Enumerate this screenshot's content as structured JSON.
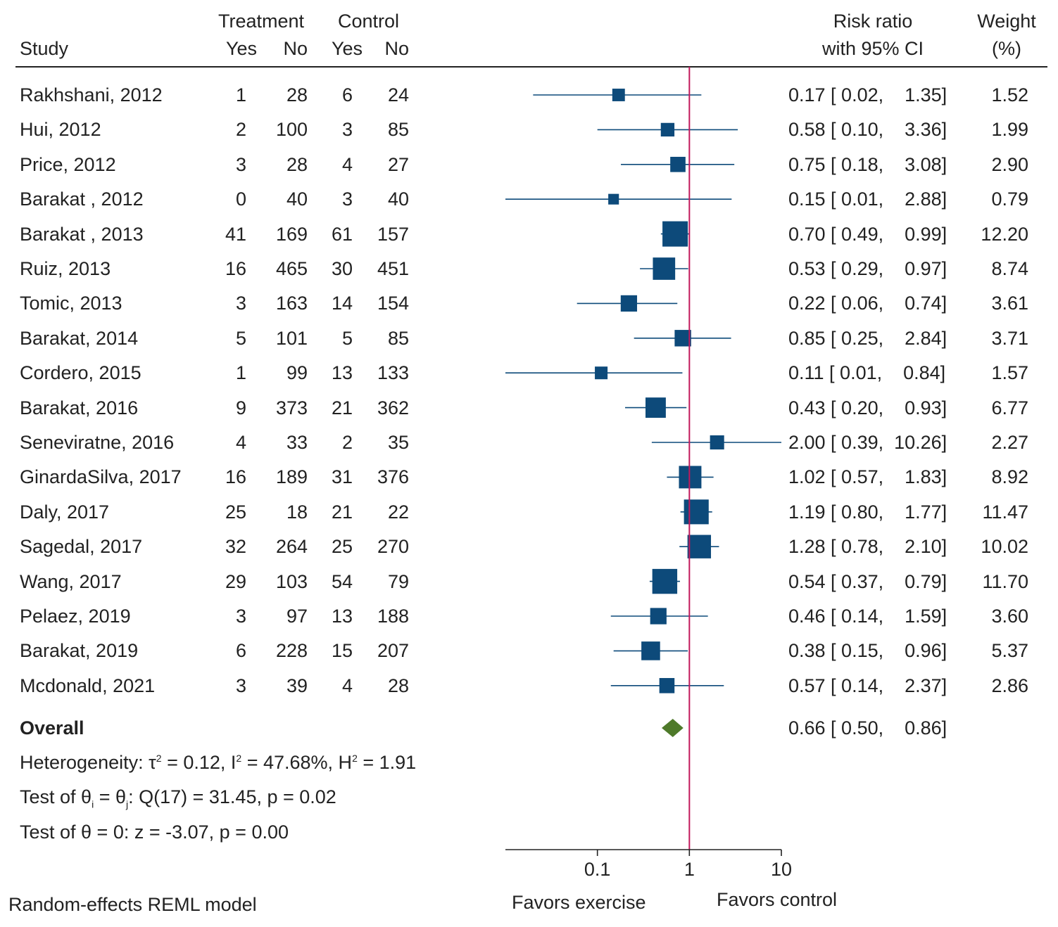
{
  "chart_data": {
    "type": "forest",
    "header": {
      "study": "Study",
      "treatment": "Treatment",
      "control": "Control",
      "yes": "Yes",
      "no": "No",
      "rr_line1": "Risk ratio",
      "rr_line2": "with 95% CI",
      "weight_line1": "Weight",
      "weight_line2": "(%)"
    },
    "studies": [
      {
        "study": "Rakhshani, 2012",
        "t_yes": "1",
        "t_no": "28",
        "c_yes": "6",
        "c_no": "24",
        "rr": 0.17,
        "lo": 0.02,
        "hi": 1.35,
        "ci_text": "0.17 [ 0.02,    1.35]",
        "weight": "1.52"
      },
      {
        "study": "Hui, 2012",
        "t_yes": "2",
        "t_no": "100",
        "c_yes": "3",
        "c_no": "85",
        "rr": 0.58,
        "lo": 0.1,
        "hi": 3.36,
        "ci_text": "0.58 [ 0.10,    3.36]",
        "weight": "1.99"
      },
      {
        "study": "Price, 2012",
        "t_yes": "3",
        "t_no": "28",
        "c_yes": "4",
        "c_no": "27",
        "rr": 0.75,
        "lo": 0.18,
        "hi": 3.08,
        "ci_text": "0.75 [ 0.18,    3.08]",
        "weight": "2.90"
      },
      {
        "study": "Barakat , 2012",
        "t_yes": "0",
        "t_no": "40",
        "c_yes": "3",
        "c_no": "40",
        "rr": 0.15,
        "lo": 0.01,
        "hi": 2.88,
        "ci_text": "0.15 [ 0.01,    2.88]",
        "weight": "0.79"
      },
      {
        "study": "Barakat , 2013",
        "t_yes": "41",
        "t_no": "169",
        "c_yes": "61",
        "c_no": "157",
        "rr": 0.7,
        "lo": 0.49,
        "hi": 0.99,
        "ci_text": "0.70 [ 0.49,    0.99]",
        "weight": "12.20"
      },
      {
        "study": "Ruiz, 2013",
        "t_yes": "16",
        "t_no": "465",
        "c_yes": "30",
        "c_no": "451",
        "rr": 0.53,
        "lo": 0.29,
        "hi": 0.97,
        "ci_text": "0.53 [ 0.29,    0.97]",
        "weight": "8.74"
      },
      {
        "study": "Tomic, 2013",
        "t_yes": "3",
        "t_no": "163",
        "c_yes": "14",
        "c_no": "154",
        "rr": 0.22,
        "lo": 0.06,
        "hi": 0.74,
        "ci_text": "0.22 [ 0.06,    0.74]",
        "weight": "3.61"
      },
      {
        "study": "Barakat, 2014",
        "t_yes": "5",
        "t_no": "101",
        "c_yes": "5",
        "c_no": "85",
        "rr": 0.85,
        "lo": 0.25,
        "hi": 2.84,
        "ci_text": "0.85 [ 0.25,    2.84]",
        "weight": "3.71"
      },
      {
        "study": "Cordero, 2015",
        "t_yes": "1",
        "t_no": "99",
        "c_yes": "13",
        "c_no": "133",
        "rr": 0.11,
        "lo": 0.01,
        "hi": 0.84,
        "ci_text": "0.11 [ 0.01,    0.84]",
        "weight": "1.57"
      },
      {
        "study": "Barakat, 2016",
        "t_yes": "9",
        "t_no": "373",
        "c_yes": "21",
        "c_no": "362",
        "rr": 0.43,
        "lo": 0.2,
        "hi": 0.93,
        "ci_text": "0.43 [ 0.20,    0.93]",
        "weight": "6.77"
      },
      {
        "study": "Seneviratne, 2016",
        "t_yes": "4",
        "t_no": "33",
        "c_yes": "2",
        "c_no": "35",
        "rr": 2.0,
        "lo": 0.39,
        "hi": 10.26,
        "ci_text": "2.00 [ 0.39,  10.26]",
        "weight": "2.27"
      },
      {
        "study": "GinardaSilva, 2017",
        "t_yes": "16",
        "t_no": "189",
        "c_yes": "31",
        "c_no": "376",
        "rr": 1.02,
        "lo": 0.57,
        "hi": 1.83,
        "ci_text": "1.02 [ 0.57,    1.83]",
        "weight": "8.92"
      },
      {
        "study": "Daly, 2017",
        "t_yes": "25",
        "t_no": "18",
        "c_yes": "21",
        "c_no": "22",
        "rr": 1.19,
        "lo": 0.8,
        "hi": 1.77,
        "ci_text": "1.19 [ 0.80,    1.77]",
        "weight": "11.47"
      },
      {
        "study": "Sagedal, 2017",
        "t_yes": "32",
        "t_no": "264",
        "c_yes": "25",
        "c_no": "270",
        "rr": 1.28,
        "lo": 0.78,
        "hi": 2.1,
        "ci_text": "1.28 [ 0.78,    2.10]",
        "weight": "10.02"
      },
      {
        "study": "Wang, 2017",
        "t_yes": "29",
        "t_no": "103",
        "c_yes": "54",
        "c_no": "79",
        "rr": 0.54,
        "lo": 0.37,
        "hi": 0.79,
        "ci_text": "0.54 [ 0.37,    0.79]",
        "weight": "11.70"
      },
      {
        "study": "Pelaez, 2019",
        "t_yes": "3",
        "t_no": "97",
        "c_yes": "13",
        "c_no": "188",
        "rr": 0.46,
        "lo": 0.14,
        "hi": 1.59,
        "ci_text": "0.46 [ 0.14,    1.59]",
        "weight": "3.60"
      },
      {
        "study": "Barakat, 2019",
        "t_yes": "6",
        "t_no": "228",
        "c_yes": "15",
        "c_no": "207",
        "rr": 0.38,
        "lo": 0.15,
        "hi": 0.96,
        "ci_text": "0.38 [ 0.15,    0.96]",
        "weight": "5.37"
      },
      {
        "study": "Mcdonald, 2021",
        "t_yes": "3",
        "t_no": "39",
        "c_yes": "4",
        "c_no": "28",
        "rr": 0.57,
        "lo": 0.14,
        "hi": 2.37,
        "ci_text": "0.57 [ 0.14,    2.37]",
        "weight": "2.86"
      }
    ],
    "overall": {
      "label": "Overall",
      "rr": 0.66,
      "lo": 0.5,
      "hi": 0.86,
      "ci_text": "0.66 [ 0.50,    0.86]"
    },
    "stats": {
      "heterogeneity_label": "Heterogeneity: τ",
      "tau_sup": "2",
      "tau_val": " = 0.12, I",
      "i_sup": "2",
      "i_val": " = 47.68%, H",
      "h_sup": "2",
      "h_val": " = 1.91",
      "test1_a": "Test of θ",
      "test1_sub_i": "i",
      "test1_b": " = θ",
      "test1_sub_j": "j",
      "test1_c": ": Q(17) = 31.45, p = 0.02",
      "test2": "Test of θ = 0: z = -3.07, p = 0.00"
    },
    "x_axis": {
      "scale": "log",
      "ticks": [
        0.1,
        1,
        10
      ],
      "tick_labels": [
        "0.1",
        "1",
        "10"
      ],
      "xlim": [
        0.01,
        10
      ]
    },
    "favors_left": "Favors exercise",
    "favors_right": "Favors control",
    "model": "Random-effects REML model",
    "colors": {
      "marker": "#0d4a7a",
      "ci_line": "#0d4a7a",
      "overall": "#4e7a2a",
      "null_line": "#c2185b",
      "axis": "#222222"
    }
  }
}
